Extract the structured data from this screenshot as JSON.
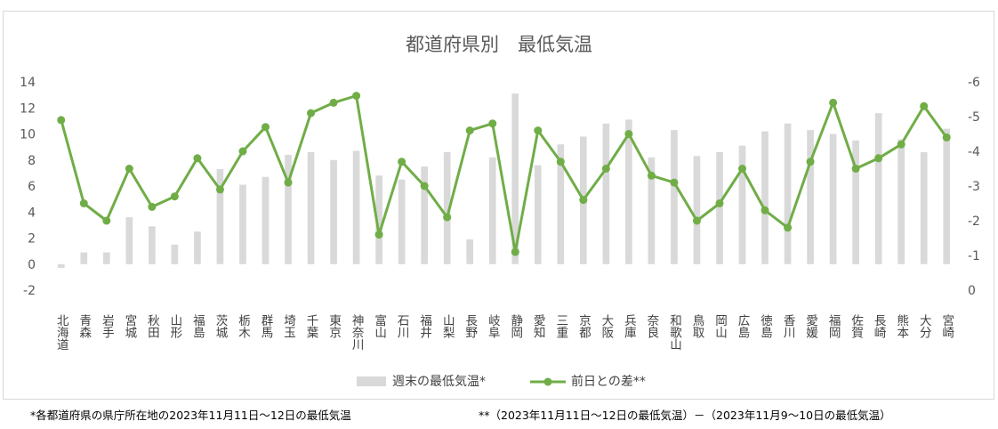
{
  "chart_data": {
    "type": "bar+line",
    "title": "都道府県別　最低気温",
    "categories": [
      "北海道",
      "青森",
      "岩手",
      "宮城",
      "秋田",
      "山形",
      "福島",
      "茨城",
      "栃木",
      "群馬",
      "埼玉",
      "千葉",
      "東京",
      "神奈川",
      "富山",
      "石川",
      "福井",
      "山梨",
      "長野",
      "岐阜",
      "静岡",
      "愛知",
      "三重",
      "京都",
      "大阪",
      "兵庫",
      "奈良",
      "和歌山",
      "鳥取",
      "岡山",
      "広島",
      "徳島",
      "香川",
      "愛媛",
      "福岡",
      "佐賀",
      "長崎",
      "熊本",
      "大分",
      "宮崎"
    ],
    "series": [
      {
        "name": "週末の最低気温*",
        "kind": "bar",
        "axis": "left",
        "color": "#d9d9d9",
        "values": [
          -0.3,
          0.9,
          0.9,
          3.6,
          2.9,
          1.5,
          2.5,
          7.3,
          6.1,
          6.7,
          8.4,
          8.6,
          8.0,
          8.7,
          6.8,
          6.5,
          7.5,
          8.6,
          1.9,
          8.2,
          13.1,
          7.6,
          9.2,
          9.8,
          10.8,
          11.1,
          8.2,
          10.3,
          8.3,
          8.6,
          9.1,
          10.2,
          10.8,
          10.3,
          10.0,
          9.5,
          11.6,
          9.6,
          8.6,
          10.4
        ]
      },
      {
        "name": "前日との差**",
        "kind": "line",
        "axis": "right",
        "color": "#70ad47",
        "values": [
          -4.9,
          -2.5,
          -2.0,
          -3.5,
          -2.4,
          -2.7,
          -3.8,
          -2.9,
          -4.0,
          -4.7,
          -3.1,
          -5.1,
          -5.4,
          -5.6,
          -1.6,
          -3.7,
          -3.0,
          -2.1,
          -4.6,
          -4.8,
          -1.1,
          -4.6,
          -3.7,
          -2.6,
          -3.5,
          -4.5,
          -3.3,
          -3.1,
          -2.0,
          -2.5,
          -3.5,
          -2.3,
          -1.8,
          -3.7,
          -5.4,
          -3.5,
          -3.8,
          -4.2,
          -5.3,
          -4.4
        ]
      }
    ],
    "y_left": {
      "min": -2,
      "max": 14,
      "step": 2,
      "ticks": [
        "-2",
        "0",
        "2",
        "4",
        "6",
        "8",
        "10",
        "12",
        "14"
      ]
    },
    "y_right": {
      "min": -6,
      "max": 0,
      "step": 1,
      "reversed": true,
      "ticks": [
        "0",
        "-1",
        "-2",
        "-3",
        "-4",
        "-5",
        "-6"
      ]
    },
    "grid": false,
    "legend_position": "bottom",
    "notes": {
      "left": "*各都道府県の県庁所在地の2023年11月11日～12日の最低気温",
      "right": "**（2023年11月11日～12日の最低気温）－（2023年11月9～10日の最低気温）"
    }
  }
}
